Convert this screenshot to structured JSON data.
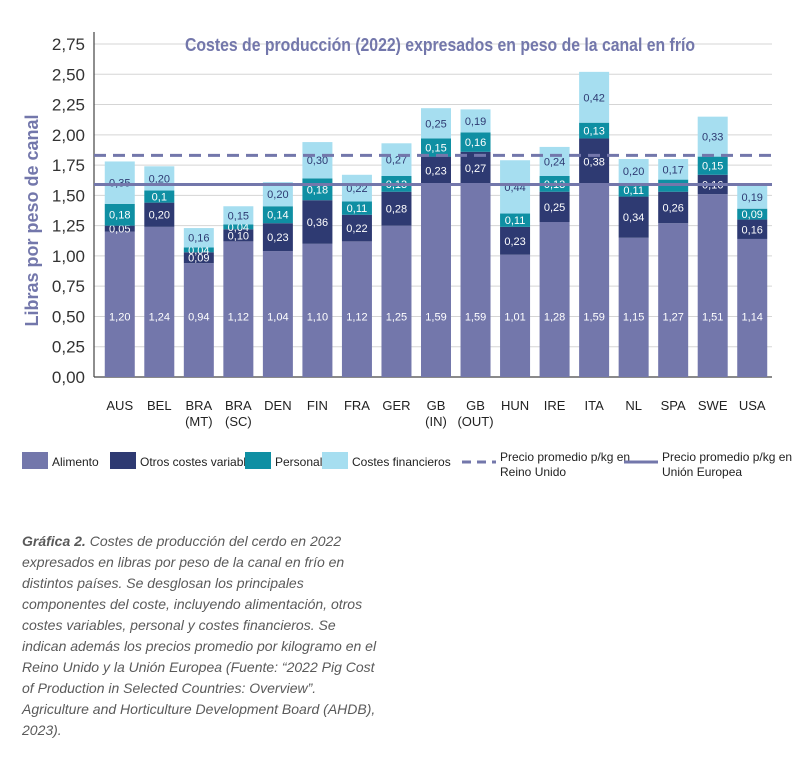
{
  "chart_data": {
    "type": "bar",
    "stacked": true,
    "title": "Costes de producción (2022) expresados en peso de la canal en frío",
    "ylabel": "Libras por peso de canal",
    "ylim": [
      0,
      2.75
    ],
    "yticks": [
      "0,00",
      "0,25",
      "0,50",
      "0,75",
      "1,00",
      "1,25",
      "1,50",
      "1,75",
      "2,00",
      "2,25",
      "2,50",
      "2,75"
    ],
    "grid": true,
    "legend_position": "bottom",
    "categories": [
      [
        "AUS"
      ],
      [
        "BEL"
      ],
      [
        "BRA",
        "(MT)"
      ],
      [
        "BRA",
        "(SC)"
      ],
      [
        "DEN"
      ],
      [
        "FIN"
      ],
      [
        "FRA"
      ],
      [
        "GER"
      ],
      [
        "GB",
        "(IN)"
      ],
      [
        "GB",
        "(OUT)"
      ],
      [
        "HUN"
      ],
      [
        "IRE"
      ],
      [
        "ITA"
      ],
      [
        "NL"
      ],
      [
        "SPA"
      ],
      [
        "SWE"
      ],
      [
        "USA"
      ]
    ],
    "series": [
      {
        "name": "Alimento",
        "color": "#7377ab",
        "values": [
          1.2,
          1.24,
          0.94,
          1.12,
          1.04,
          1.1,
          1.12,
          1.25,
          1.59,
          1.59,
          1.01,
          1.28,
          1.59,
          1.15,
          1.27,
          1.51,
          1.14
        ],
        "labels": [
          "1,20",
          "1,24",
          "0,94",
          "1,12",
          "1,04",
          "1,10",
          "1,12",
          "1,25",
          "1,59",
          "1,59",
          "1,01",
          "1,28",
          "1,59",
          "1,15",
          "1,27",
          "1,51",
          "1,14"
        ]
      },
      {
        "name": "Otros costes variables",
        "color": "#2e3a72",
        "values": [
          0.05,
          0.2,
          0.09,
          0.1,
          0.23,
          0.36,
          0.22,
          0.28,
          0.23,
          0.27,
          0.23,
          0.25,
          0.38,
          0.34,
          0.26,
          0.16,
          0.16
        ],
        "labels": [
          "0,05",
          "0,20",
          "0,09",
          "0,10",
          "0,23",
          "0,36",
          "0,22",
          "0,28",
          "0,23",
          "0,27",
          "0,23",
          "0,25",
          "0,38",
          "0,34",
          "0,26",
          "0,16",
          "0,16"
        ]
      },
      {
        "name": "Personal",
        "color": "#0f8fa3",
        "values": [
          0.18,
          0.1,
          0.04,
          0.04,
          0.14,
          0.18,
          0.11,
          0.13,
          0.15,
          0.16,
          0.11,
          0.13,
          0.13,
          0.11,
          0.1,
          0.15,
          0.09
        ],
        "labels": [
          "0,18",
          "0,1",
          "0,04",
          "0,04",
          "0,14",
          "0,18",
          "0,11",
          "0,13",
          "0,15",
          "0,16",
          "0,11",
          "0,13",
          "0,13",
          "0,11",
          "",
          "0,15",
          "0,09"
        ]
      },
      {
        "name": "Costes financieros",
        "color": "#a6def0",
        "values": [
          0.35,
          0.2,
          0.16,
          0.15,
          0.2,
          0.3,
          0.22,
          0.27,
          0.25,
          0.19,
          0.44,
          0.24,
          0.42,
          0.2,
          0.17,
          0.33,
          0.19
        ],
        "labels": [
          "0,35",
          "0,20",
          "0,16",
          "0,15",
          "0,20",
          "0,30",
          "0,22",
          "0,27",
          "0,25",
          "0,19",
          "0,44",
          "0,24",
          "0,42",
          "0,20",
          "0,17",
          "0,33",
          "0,19"
        ]
      }
    ],
    "reference_lines": [
      {
        "name": "Precio promedio p/kg en Reino Unido",
        "value": 1.83,
        "style": "dashed",
        "color": "#7377ab"
      },
      {
        "name": "Precio promedio p/kg en Unión Europea",
        "value": 1.59,
        "style": "solid",
        "color": "#7377ab"
      }
    ],
    "legend": [
      {
        "label": "Alimento",
        "kind": "swatch",
        "color": "#7377ab"
      },
      {
        "label": "Otros costes variables",
        "kind": "swatch",
        "color": "#2e3a72"
      },
      {
        "label": "Personal",
        "kind": "swatch",
        "color": "#0f8fa3"
      },
      {
        "label": "Costes financieros",
        "kind": "swatch",
        "color": "#a6def0"
      },
      {
        "label": [
          "Precio promedio p/kg en",
          "Reino Unido"
        ],
        "kind": "dashed",
        "color": "#7377ab"
      },
      {
        "label": [
          "Precio promedio p/kg en",
          "Unión Europea"
        ],
        "kind": "solid",
        "color": "#7377ab"
      }
    ]
  },
  "caption": {
    "bold": "Gráfica 2.",
    "text": " Costes de producción del cerdo en 2022 expresados en libras por peso de la canal en frío en distintos países. Se desglosan los principales componentes del coste, incluyendo alimentación, otros costes variables, personal y costes financieros. Se indican además los precios promedio por kilogramo en el Reino Unido y la Unión Europea (Fuente: “2022 Pig Cost of Production in Selected Countries: Overview”. Agriculture and Horticulture Development Board (AHDB), 2023)."
  }
}
